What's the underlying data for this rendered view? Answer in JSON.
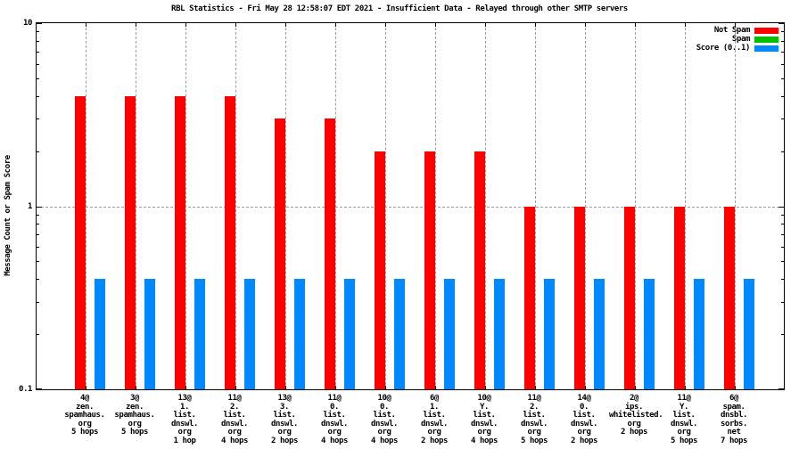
{
  "chart_data": {
    "type": "bar",
    "title": "RBL Statistics - Fri May 28 12:58:07 EDT 2021 - Insufficient Data - Relayed through other SMTP servers",
    "ylabel": "Message Count or Spam Score",
    "xlabel": "",
    "yscale": "log",
    "ylim": [
      0.1,
      10
    ],
    "ytick_labels": [
      "10",
      "1",
      "0.1"
    ],
    "grid": "dashed vertical at each category, dashed horizontal at y=1",
    "legend_position": "top-right",
    "categories": [
      [
        "4@",
        "zen.",
        "spamhaus.",
        "org",
        "5 hops"
      ],
      [
        "3@",
        "zen.",
        "spamhaus.",
        "org",
        "5 hops"
      ],
      [
        "13@",
        "1.",
        "list.",
        "dnswl.",
        "org",
        "1 hop"
      ],
      [
        "11@",
        "2.",
        "list.",
        "dnswl.",
        "org",
        "4 hops"
      ],
      [
        "13@",
        "3.",
        "list.",
        "dnswl.",
        "org",
        "2 hops"
      ],
      [
        "11@",
        "0.",
        "list.",
        "dnswl.",
        "org",
        "4 hops"
      ],
      [
        "10@",
        "0.",
        "list.",
        "dnswl.",
        "org",
        "4 hops"
      ],
      [
        "6@",
        "1.",
        "list.",
        "dnswl.",
        "org",
        "2 hops"
      ],
      [
        "10@",
        "Y.",
        "list.",
        "dnswl.",
        "org",
        "4 hops"
      ],
      [
        "11@",
        "2.",
        "list.",
        "dnswl.",
        "org",
        "5 hops"
      ],
      [
        "14@",
        "0.",
        "list.",
        "dnswl.",
        "org",
        "2 hops"
      ],
      [
        "2@",
        "ips.",
        "whitelisted.",
        "org",
        "2 hops"
      ],
      [
        "11@",
        "Y.",
        "list.",
        "dnswl.",
        "org",
        "5 hops"
      ],
      [
        "6@",
        "spam.",
        "dnsbl.",
        "sorbs.",
        "net",
        "7 hops"
      ]
    ],
    "series": [
      {
        "name": "Not Spam",
        "color": "#ff0000",
        "values": [
          4,
          4,
          4,
          4,
          3,
          3,
          2,
          2,
          2,
          1,
          1,
          1,
          1,
          1
        ]
      },
      {
        "name": "Spam",
        "color": "#00c000",
        "values": [
          0,
          0,
          0,
          0,
          0,
          0,
          0,
          0,
          0,
          0,
          0,
          0,
          0,
          0
        ]
      },
      {
        "name": "Score (0..1)",
        "color": "#0088ff",
        "values": [
          0.4,
          0.4,
          0.4,
          0.4,
          0.4,
          0.4,
          0.4,
          0.4,
          0.4,
          0.4,
          0.4,
          0.4,
          0.4,
          0.4
        ]
      }
    ]
  }
}
